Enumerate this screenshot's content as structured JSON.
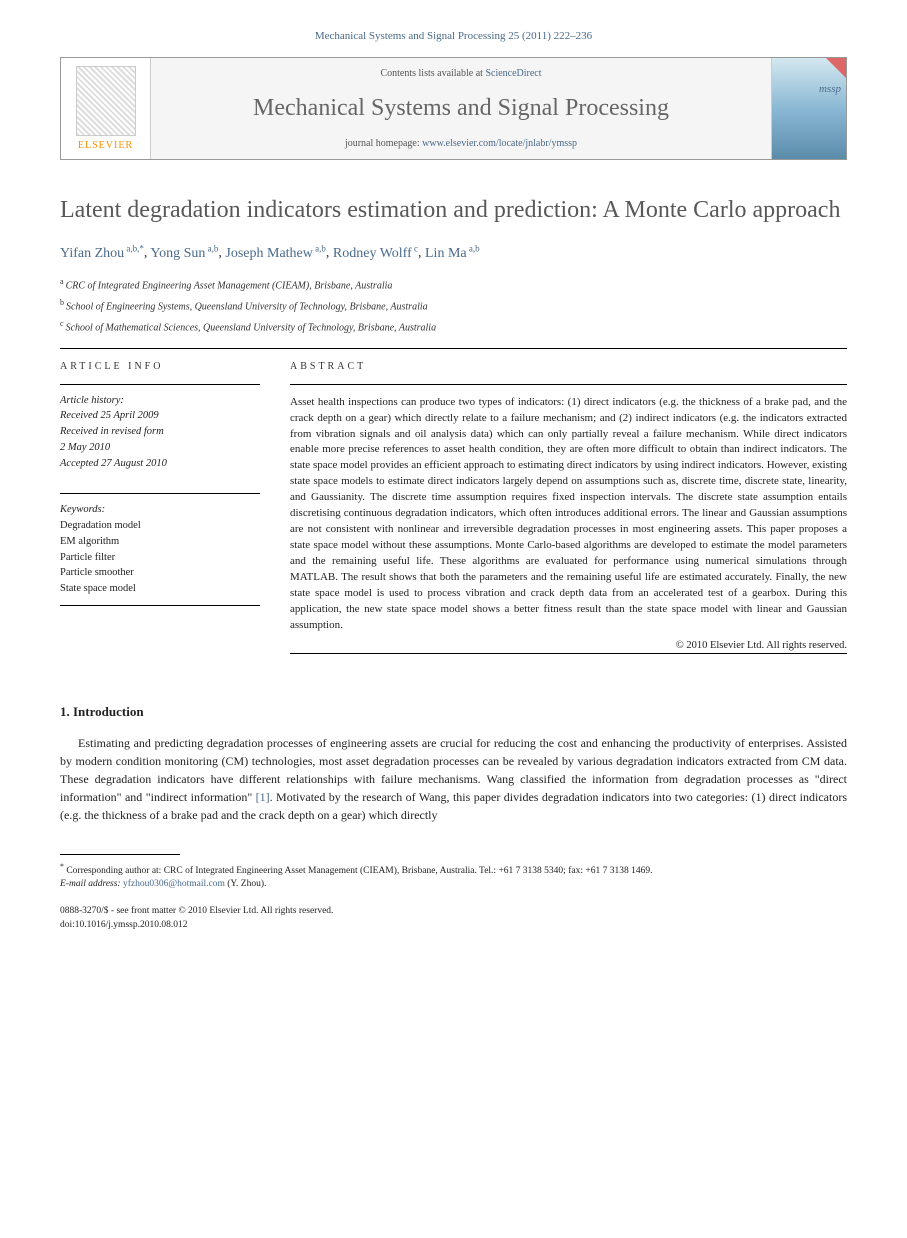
{
  "journalRef": "Mechanical Systems and Signal Processing 25 (2011) 222–236",
  "contentsAvailable": "Contents lists available at",
  "scienceDirect": "ScienceDirect",
  "journalName": "Mechanical Systems and Signal Processing",
  "homepageLabel": "journal homepage:",
  "homepageUrl": "www.elsevier.com/locate/jnlabr/ymssp",
  "elsevierLabel": "ELSEVIER",
  "coverLabel": "mssp",
  "title": "Latent degradation indicators estimation and prediction: A Monte Carlo approach",
  "authors": [
    {
      "name": "Yifan Zhou",
      "aff": "a,b,",
      "corr": "*"
    },
    {
      "name": "Yong Sun",
      "aff": "a,b",
      "corr": ""
    },
    {
      "name": "Joseph Mathew",
      "aff": "a,b",
      "corr": ""
    },
    {
      "name": "Rodney Wolff",
      "aff": "c",
      "corr": ""
    },
    {
      "name": "Lin Ma",
      "aff": "a,b",
      "corr": ""
    }
  ],
  "affiliations": [
    {
      "key": "a",
      "text": "CRC of Integrated Engineering Asset Management (CIEAM), Brisbane, Australia"
    },
    {
      "key": "b",
      "text": "School of Engineering Systems, Queensland University of Technology, Brisbane, Australia"
    },
    {
      "key": "c",
      "text": "School of Mathematical Sciences, Queensland University of Technology, Brisbane, Australia"
    }
  ],
  "articleInfoHead": "ARTICLE INFO",
  "abstractHead": "ABSTRACT",
  "history": {
    "label": "Article history:",
    "received": "Received 25 April 2009",
    "revised1": "Received in revised form",
    "revised2": "2 May 2010",
    "accepted": "Accepted 27 August 2010"
  },
  "keywords": {
    "label": "Keywords:",
    "items": [
      "Degradation model",
      "EM algorithm",
      "Particle filter",
      "Particle smoother",
      "State space model"
    ]
  },
  "abstract": "Asset health inspections can produce two types of indicators: (1) direct indicators (e.g. the thickness of a brake pad, and the crack depth on a gear) which directly relate to a failure mechanism; and (2) indirect indicators (e.g. the indicators extracted from vibration signals and oil analysis data) which can only partially reveal a failure mechanism. While direct indicators enable more precise references to asset health condition, they are often more difficult to obtain than indirect indicators. The state space model provides an efficient approach to estimating direct indicators by using indirect indicators. However, existing state space models to estimate direct indicators largely depend on assumptions such as, discrete time, discrete state, linearity, and Gaussianity. The discrete time assumption requires fixed inspection intervals. The discrete state assumption entails discretising continuous degradation indicators, which often introduces additional errors. The linear and Gaussian assumptions are not consistent with nonlinear and irreversible degradation processes in most engineering assets. This paper proposes a state space model without these assumptions. Monte Carlo-based algorithms are developed to estimate the model parameters and the remaining useful life. These algorithms are evaluated for performance using numerical simulations through MATLAB. The result shows that both the parameters and the remaining useful life are estimated accurately. Finally, the new state space model is used to process vibration and crack depth data from an accelerated test of a gearbox. During this application, the new state space model shows a better fitness result than the state space model with linear and Gaussian assumption.",
  "copyrightLine": "© 2010 Elsevier Ltd. All rights reserved.",
  "introHead": "1.  Introduction",
  "introBody": "Estimating and predicting degradation processes of engineering assets are crucial for reducing the cost and enhancing the productivity of enterprises. Assisted by modern condition monitoring (CM) technologies, most asset degradation processes can be revealed by various degradation indicators extracted from CM data. These degradation indicators have different relationships with failure mechanisms. Wang classified the information from degradation processes as \"direct information\" and \"indirect information\" [1]. Motivated by the research of Wang, this paper divides degradation indicators into two categories: (1) direct indicators (e.g. the thickness of a brake pad and the crack depth on a gear) which directly",
  "refLink": "[1]",
  "corrFootnote": {
    "marker": "*",
    "label": "Corresponding author at:",
    "text": "CRC of Integrated Engineering Asset Management (CIEAM), Brisbane, Australia. Tel.: +61 7 3138 5340; fax: +61 7 3138 1469."
  },
  "emailLabel": "E-mail address:",
  "emailValue": "yfzhou0306@hotmail.com",
  "emailAuthor": "(Y. Zhou).",
  "footer": {
    "line1": "0888-3270/$ - see front matter © 2010 Elsevier Ltd. All rights reserved.",
    "line2": "doi:10.1016/j.ymssp.2010.08.012"
  }
}
